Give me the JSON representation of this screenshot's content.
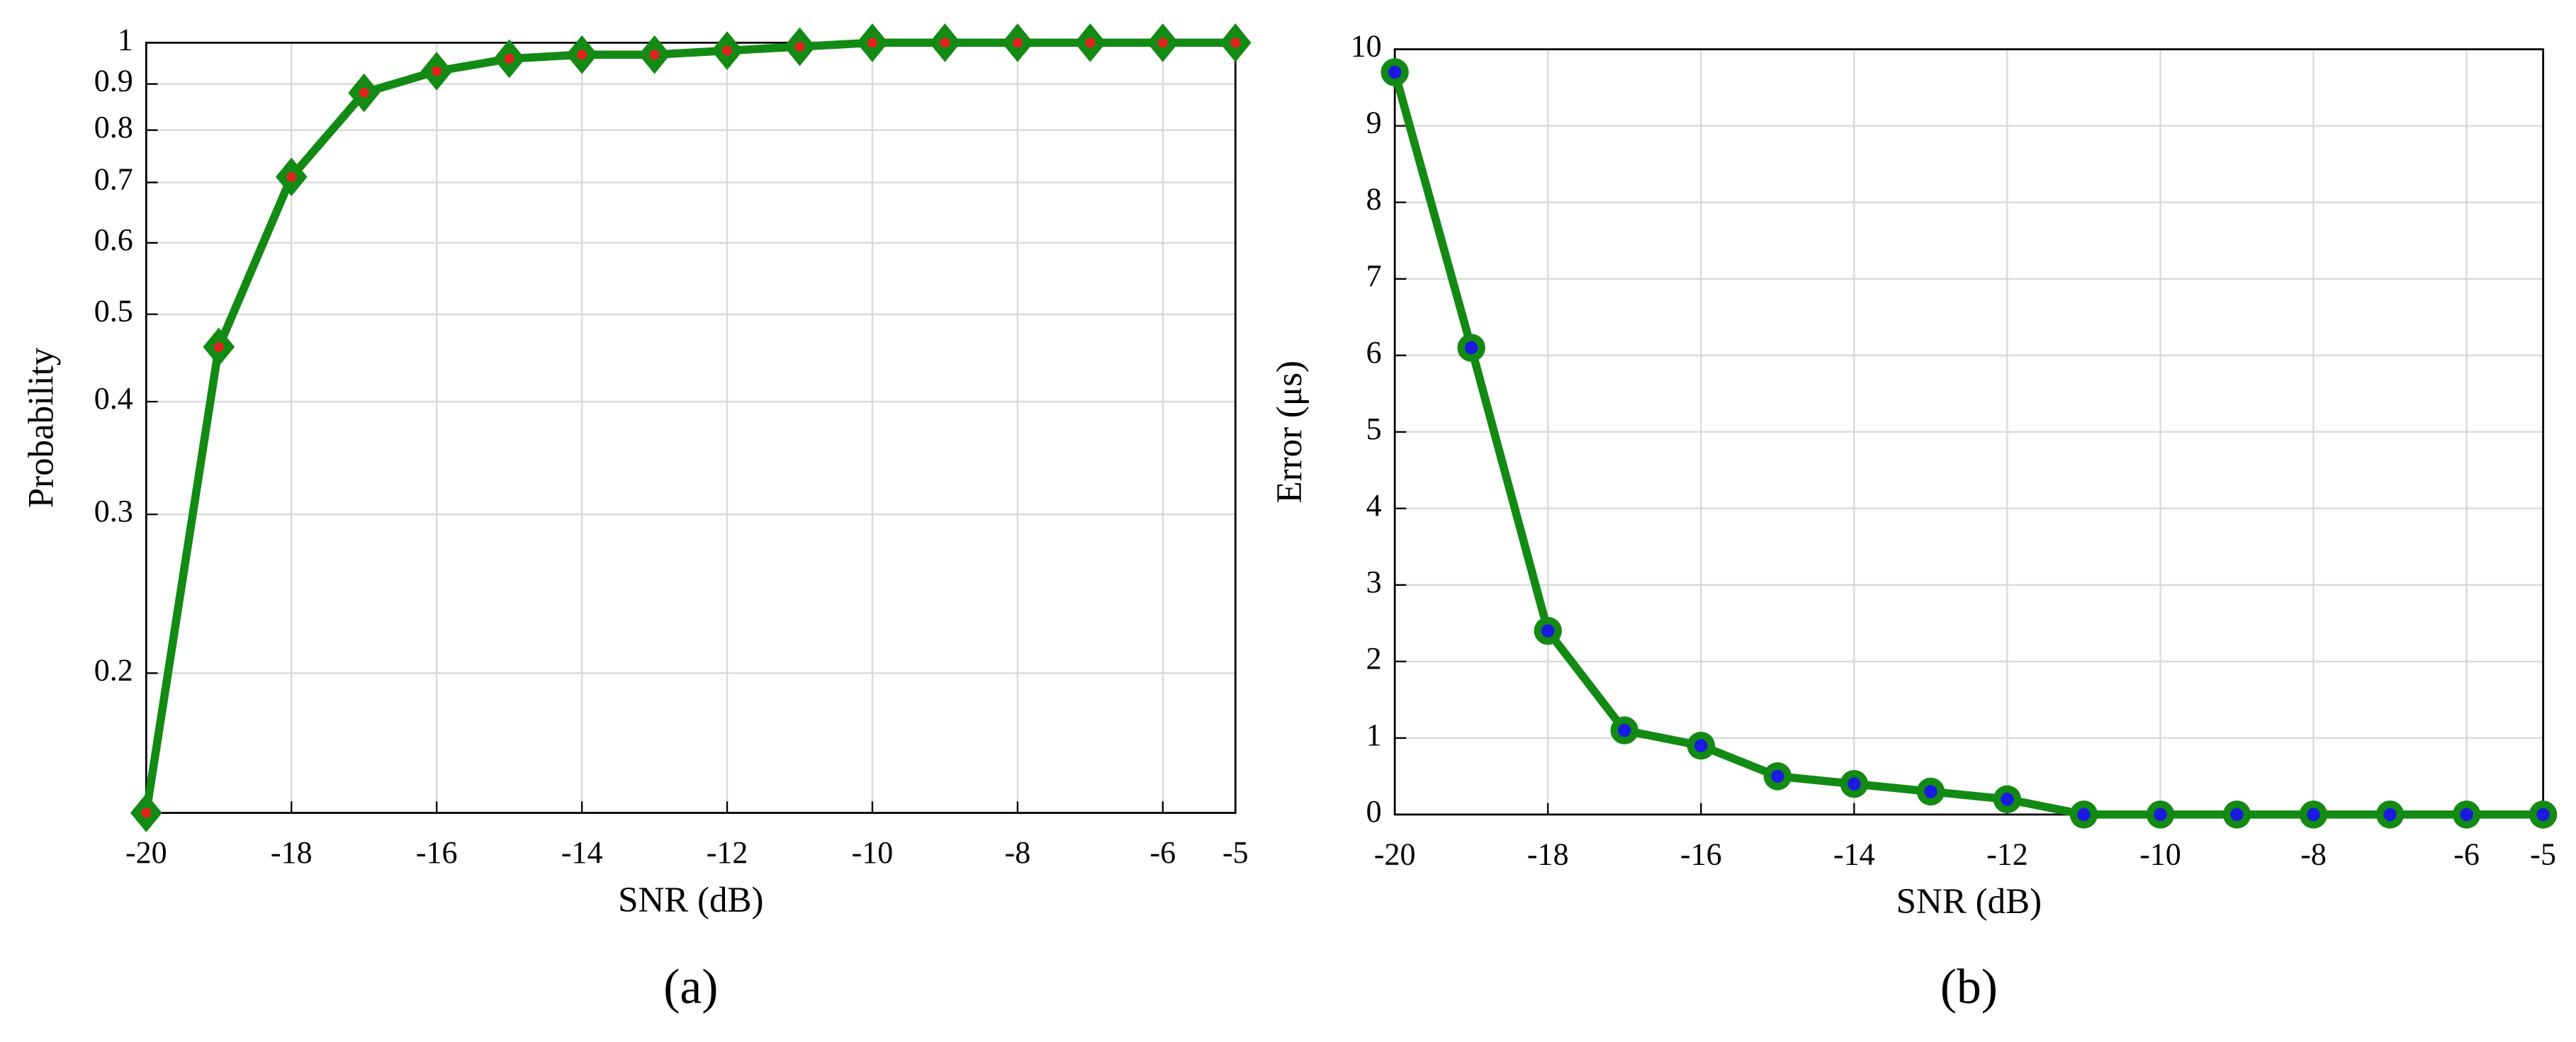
{
  "chart_data": [
    {
      "type": "line",
      "label": "(a)",
      "xlabel": "SNR (dB)",
      "ylabel": "Probability",
      "x": [
        -20,
        -19,
        -18,
        -17,
        -16,
        -15,
        -14,
        -13,
        -12,
        -11,
        -10,
        -9,
        -8,
        -7,
        -6,
        -5
      ],
      "values": [
        0.14,
        0.46,
        0.71,
        0.88,
        0.93,
        0.96,
        0.97,
        0.97,
        0.98,
        0.99,
        1,
        1,
        1,
        1,
        1,
        1
      ],
      "color": "#138a13",
      "marker": "diamond",
      "marker_face": "#e0201a",
      "xlim": [
        -20,
        -5
      ],
      "xticks": [
        -20,
        -18,
        -16,
        -14,
        -12,
        -10,
        -8,
        -6,
        -5
      ],
      "ylim": [
        0.14,
        1
      ],
      "yticks": [
        0.2,
        0.3,
        0.4,
        0.5,
        0.6,
        0.7,
        0.8,
        0.9,
        1
      ],
      "yscale": "log",
      "grid": true
    },
    {
      "type": "line",
      "label": "(b)",
      "xlabel": "SNR (dB)",
      "ylabel": "Error (μs)",
      "x": [
        -20,
        -19,
        -18,
        -17,
        -16,
        -15,
        -14,
        -13,
        -12,
        -11,
        -10,
        -9,
        -8,
        -7,
        -6,
        -5
      ],
      "values": [
        9.7,
        6.1,
        2.4,
        1.1,
        0.9,
        0.5,
        0.4,
        0.3,
        0.2,
        0,
        0,
        0,
        0,
        0,
        0,
        0
      ],
      "color": "#138a13",
      "marker": "circle",
      "marker_face": "#1a1ae0",
      "xlim": [
        -20,
        -5
      ],
      "xticks": [
        -20,
        -18,
        -16,
        -14,
        -12,
        -10,
        -8,
        -6,
        -5
      ],
      "ylim": [
        0,
        10
      ],
      "yticks": [
        0,
        1,
        2,
        3,
        4,
        5,
        6,
        7,
        8,
        9,
        10
      ],
      "yscale": "linear",
      "grid": true
    }
  ]
}
